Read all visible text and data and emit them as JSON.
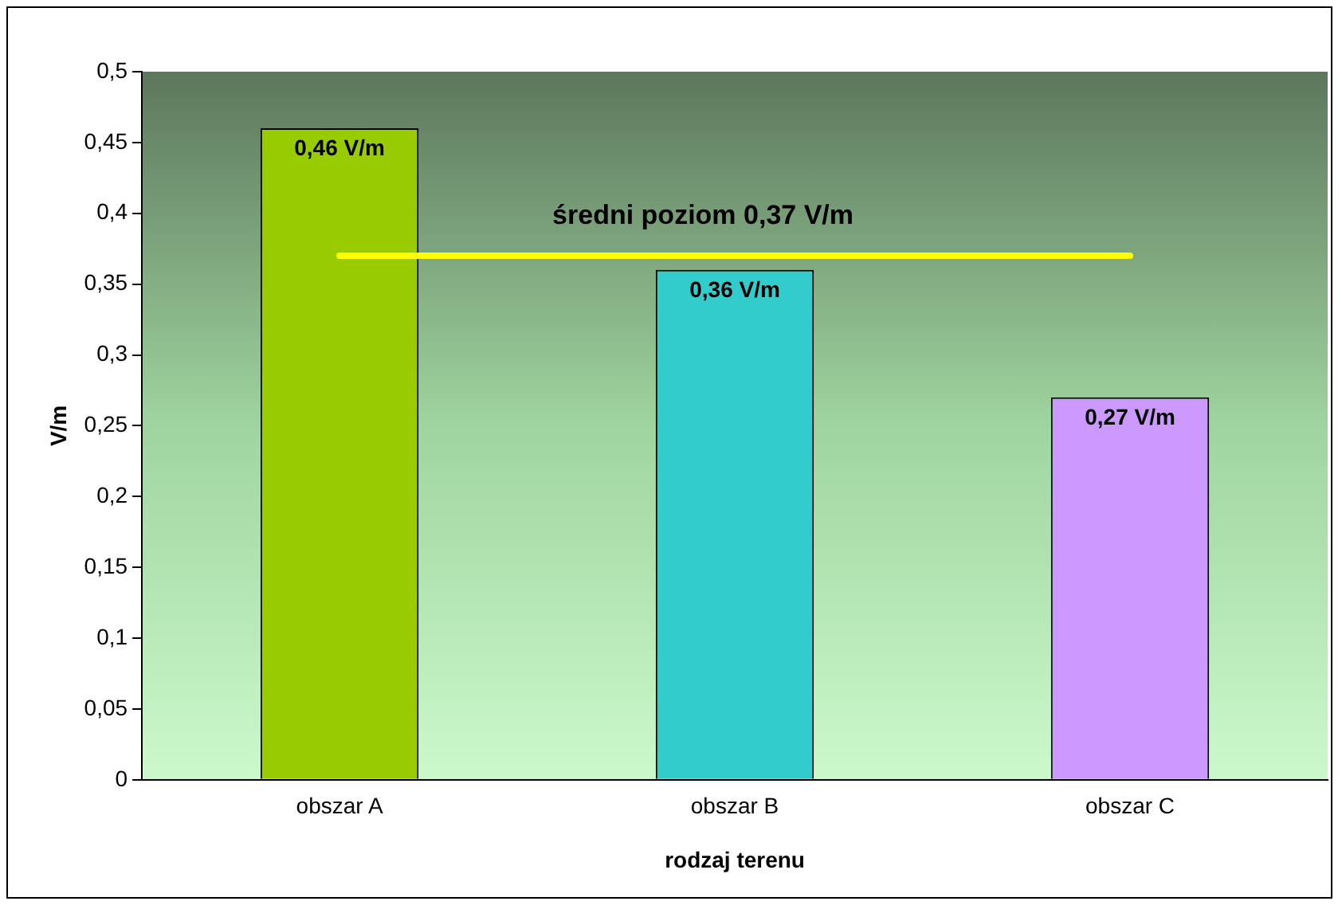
{
  "chart_data": {
    "type": "bar",
    "xlabel": "rodzaj terenu",
    "ylabel": "V/m",
    "categories": [
      "obszar A",
      "obszar B",
      "obszar C"
    ],
    "values": [
      0.46,
      0.36,
      0.27
    ],
    "colors": [
      "#99cc00",
      "#33cccc",
      "#cc99ff"
    ],
    "value_labels": [
      "0,46 V/m",
      "0,36 V/m",
      "0,27 V/m"
    ],
    "ylim": [
      0,
      0.5
    ],
    "yticks": [
      0,
      {
        "value": 0.05,
        "label": "0,05"
      },
      {
        "value": 0.1,
        "label": "0,1"
      },
      {
        "value": 0.15,
        "label": "0,15"
      },
      {
        "value": 0.2,
        "label": "0,2"
      },
      {
        "value": 0.25,
        "label": "0,25"
      },
      {
        "value": 0.3,
        "label": "0,3"
      },
      {
        "value": 0.35,
        "label": "0,35"
      },
      {
        "value": 0.4,
        "label": "0,4"
      },
      {
        "value": 0.45,
        "label": "0,45"
      },
      {
        "value": 0.5,
        "label": "0,5"
      }
    ],
    "ref_lines": [
      {
        "axis": "y",
        "value": 0.37,
        "label": "średni poziom 0,37 V/m",
        "color": "#ffff00"
      }
    ],
    "grid": false,
    "legend": false
  }
}
